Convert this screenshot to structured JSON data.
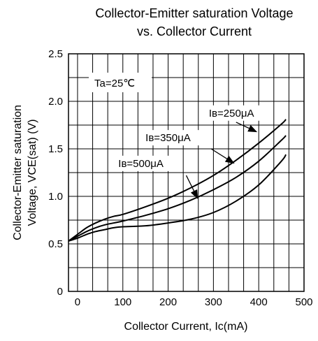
{
  "chart_data": {
    "type": "line",
    "title_lines": [
      "Collector-Emitter saturation Voltage",
      "vs. Collector Current"
    ],
    "xlabel": "Collector Current, Ic(mA)",
    "ylabel_lines": [
      "Collector-Emitter saturation",
      "Voltage, VCE(sat)  (V)"
    ],
    "xlim": [
      -20,
      500
    ],
    "ylim": [
      0,
      2.5
    ],
    "x_ticks": [
      0,
      100,
      200,
      300,
      400,
      500
    ],
    "y_ticks": [
      0,
      0.5,
      1.0,
      1.5,
      2.0,
      2.5
    ],
    "x_tick_labels": [
      "0",
      "100",
      "200",
      "300",
      "400",
      "500"
    ],
    "y_tick_labels": [
      "0",
      "0.5",
      "1.0",
      "1.5",
      "2.0",
      "2.5"
    ],
    "grid": true,
    "condition": "Ta=25℃",
    "series": [
      {
        "name": "Iʙ=250μA",
        "x": [
          -20,
          0,
          20,
          40,
          60,
          80,
          100,
          150,
          200,
          250,
          300,
          350,
          400,
          450,
          460
        ],
        "y": [
          0.53,
          0.6,
          0.67,
          0.72,
          0.76,
          0.79,
          0.81,
          0.89,
          0.98,
          1.09,
          1.22,
          1.38,
          1.56,
          1.76,
          1.81
        ]
      },
      {
        "name": "Iʙ=350μA",
        "x": [
          -20,
          0,
          20,
          40,
          60,
          80,
          100,
          150,
          200,
          250,
          300,
          350,
          400,
          450,
          460
        ],
        "y": [
          0.53,
          0.58,
          0.63,
          0.67,
          0.7,
          0.72,
          0.74,
          0.8,
          0.87,
          0.96,
          1.07,
          1.2,
          1.37,
          1.59,
          1.64
        ]
      },
      {
        "name": "Iʙ=500μA",
        "x": [
          -20,
          0,
          20,
          40,
          60,
          80,
          100,
          150,
          200,
          250,
          300,
          350,
          400,
          450,
          460
        ],
        "y": [
          0.53,
          0.56,
          0.6,
          0.63,
          0.65,
          0.67,
          0.68,
          0.69,
          0.72,
          0.76,
          0.83,
          0.95,
          1.12,
          1.37,
          1.44
        ]
      }
    ],
    "annotations": [
      {
        "text": "Iʙ=250μA",
        "series": 0,
        "label_x": 290,
        "label_y": 1.84,
        "arrow_from": [
          350,
          1.78
        ],
        "arrow_to": [
          395,
          1.68
        ]
      },
      {
        "text": "Iʙ=350μA",
        "series": 1,
        "label_x": 150,
        "label_y": 1.58,
        "arrow_from": [
          295,
          1.5
        ],
        "arrow_to": [
          345,
          1.35
        ]
      },
      {
        "text": "Iʙ=500μA",
        "series": 2,
        "label_x": 90,
        "label_y": 1.31,
        "arrow_from": [
          240,
          1.22
        ],
        "arrow_to": [
          265,
          0.98
        ]
      }
    ]
  }
}
